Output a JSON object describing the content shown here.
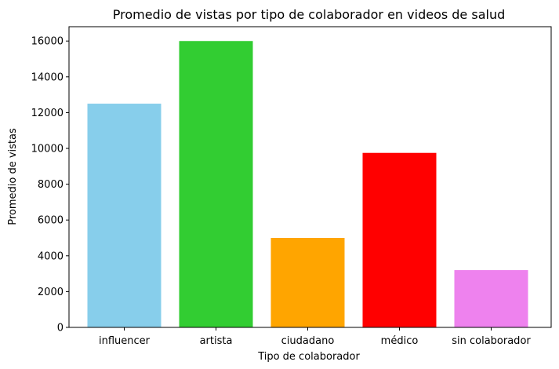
{
  "chart_data": {
    "type": "bar",
    "title": "Promedio de vistas por tipo de colaborador en videos de salud",
    "xlabel": "Tipo de colaborador",
    "ylabel": "Promedio de vistas",
    "categories": [
      "influencer",
      "artista",
      "ciudadano",
      "médico",
      "sin colaborador"
    ],
    "values": [
      12500,
      16000,
      5000,
      9750,
      3200
    ],
    "colors": [
      "#87ceeb",
      "#32cd32",
      "#ffa500",
      "#ff0000",
      "#ee82ee"
    ],
    "ylim": [
      0,
      16800
    ],
    "yticks": [
      0,
      2000,
      4000,
      6000,
      8000,
      10000,
      12000,
      14000,
      16000
    ],
    "grid": false,
    "legend": "none"
  }
}
